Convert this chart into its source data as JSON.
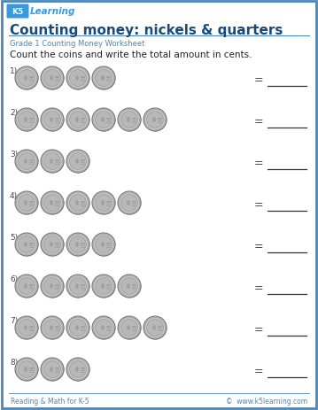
{
  "title": "Counting money: nickels & quarters",
  "subtitle": "Grade 1 Counting Money Worksheet",
  "instruction": "Count the coins and write the total amount in cents.",
  "footer_left": "Reading & Math for K-5",
  "footer_right": "©  www.k5learning.com",
  "border_color": "#4a86b8",
  "title_color": "#1a4a7a",
  "subtitle_color": "#4a86b8",
  "instruction_color": "#222222",
  "background": "#ffffff",
  "rows": [
    {
      "number": "1)",
      "coins": 4
    },
    {
      "number": "2)",
      "coins": 6
    },
    {
      "number": "3)",
      "coins": 3
    },
    {
      "number": "4)",
      "coins": 5
    },
    {
      "number": "5)",
      "coins": 4
    },
    {
      "number": "6)",
      "coins": 5
    },
    {
      "number": "7)",
      "coins": 6
    },
    {
      "number": "8)",
      "coins": 3
    }
  ],
  "line_color": "#333333",
  "equal_color": "#444444",
  "number_color": "#444444"
}
